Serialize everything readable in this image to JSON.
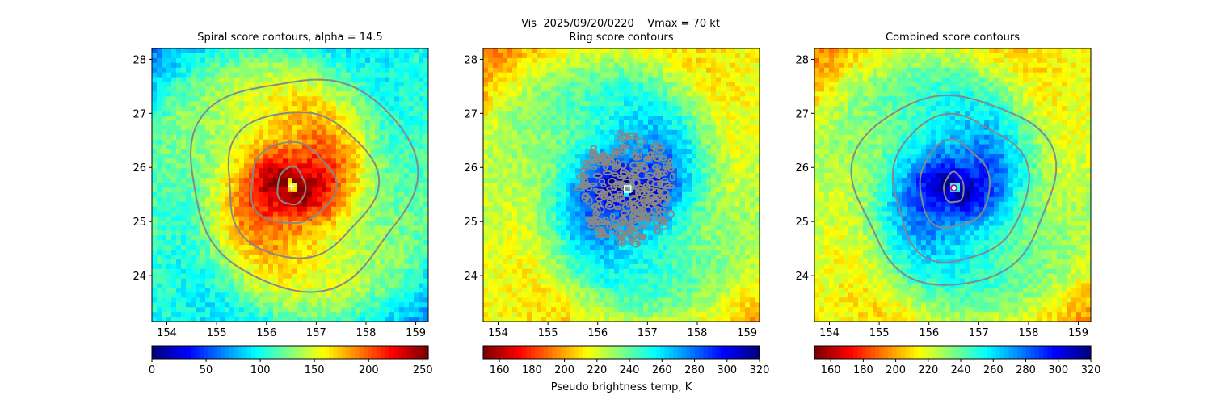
{
  "figure": {
    "suptitle": "Vis  2025/09/20/0220    Vmax = 70 kt",
    "colorbar_label": "Pseudo brightness temp, K"
  },
  "colors": {
    "contour": "#888888",
    "frame": "#000000"
  },
  "chart_data": [
    {
      "type": "heatmap",
      "title": "Spiral score contours, alpha = 14.5",
      "xlim": [
        153.7,
        159.25
      ],
      "ylim": [
        23.15,
        28.2
      ],
      "xticks": [
        154,
        155,
        156,
        157,
        158,
        159
      ],
      "yticks": [
        24,
        25,
        26,
        27,
        28
      ],
      "colormap": "jet",
      "colormap_reversed": false,
      "center": {
        "lon": 156.5,
        "lat": 25.65,
        "marker": "plus",
        "marker_color": "#ffffff"
      },
      "contours": [
        {
          "level": 1,
          "lon_radius": 0.28,
          "lat_radius": 0.35,
          "lon_offset": 0.0,
          "lat_offset": 0.0
        },
        {
          "level": 2,
          "lon_radius": 0.85,
          "lat_radius": 0.75,
          "lon_offset": 0.0,
          "lat_offset": 0.05
        },
        {
          "level": 3,
          "lon_radius": 1.5,
          "lat_radius": 1.35,
          "lon_offset": 0.15,
          "lat_offset": 0.05
        },
        {
          "level": 4,
          "lon_radius": 2.25,
          "lat_radius": 1.95,
          "lon_offset": 0.2,
          "lat_offset": 0.1
        }
      ],
      "colorbar": {
        "min": 0,
        "max": 255,
        "ticks": [
          0,
          50,
          100,
          150,
          200,
          250
        ]
      }
    },
    {
      "type": "heatmap",
      "title": "Ring score contours",
      "xlim": [
        153.7,
        159.25
      ],
      "ylim": [
        23.15,
        28.2
      ],
      "xticks": [
        154,
        155,
        156,
        157,
        158,
        159
      ],
      "yticks": [
        24,
        25,
        26,
        27,
        28
      ],
      "colormap": "jet",
      "colormap_reversed": true,
      "center": {
        "lon": 156.6,
        "lat": 25.6,
        "marker": "square",
        "marker_color": "#ffffff"
      },
      "ring_region": {
        "lon_radius": 1.0,
        "lat_radius": 1.05
      },
      "colorbar": {
        "min": 150,
        "max": 320,
        "ticks": [
          160,
          180,
          200,
          220,
          240,
          260,
          280,
          300,
          320
        ]
      }
    },
    {
      "type": "heatmap",
      "title": "Combined score contours",
      "xlim": [
        153.7,
        159.25
      ],
      "ylim": [
        23.15,
        28.2
      ],
      "xticks": [
        154,
        155,
        156,
        157,
        158,
        159
      ],
      "yticks": [
        24,
        25,
        26,
        27,
        28
      ],
      "colormap": "jet",
      "colormap_reversed": true,
      "center": {
        "lon": 156.5,
        "lat": 25.62,
        "marker": "circle",
        "marker_color": "#cc00cc"
      },
      "contours": [
        {
          "level": 1,
          "lon_radius": 0.2,
          "lat_radius": 0.28,
          "lon_offset": 0.0,
          "lat_offset": 0.0
        },
        {
          "level": 2,
          "lon_radius": 0.7,
          "lat_radius": 0.8,
          "lon_offset": 0.0,
          "lat_offset": 0.05
        },
        {
          "level": 3,
          "lon_radius": 1.35,
          "lat_radius": 1.35,
          "lon_offset": 0.1,
          "lat_offset": 0.0
        },
        {
          "level": 4,
          "lon_radius": 2.0,
          "lat_radius": 1.75,
          "lon_offset": 0.0,
          "lat_offset": 0.0
        }
      ],
      "colorbar": {
        "min": 150,
        "max": 320,
        "ticks": [
          160,
          180,
          200,
          220,
          240,
          260,
          280,
          300,
          320
        ]
      }
    }
  ]
}
